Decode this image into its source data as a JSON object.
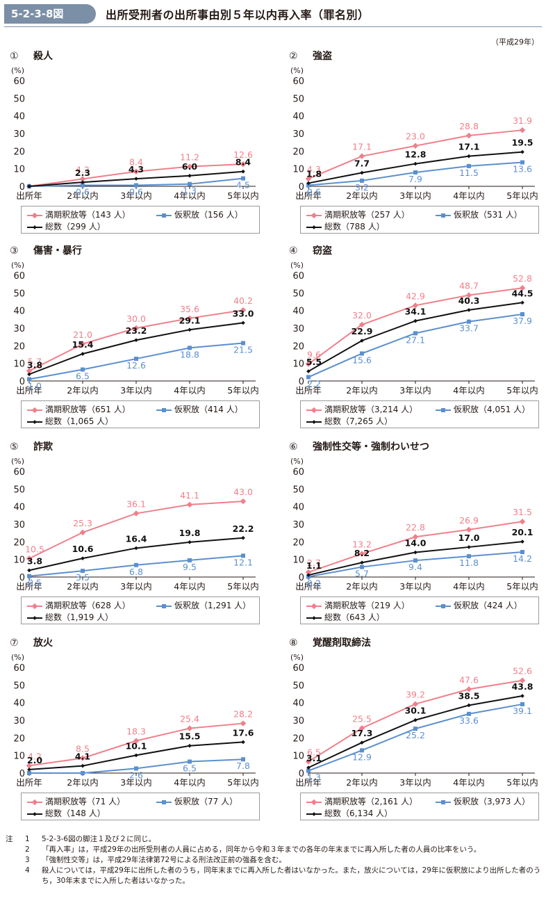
{
  "header": {
    "figure_id": "5-2-3-8図",
    "title": "出所受刑者の出所事由別５年以内再入率（罪名別）",
    "year_note": "（平成29年）"
  },
  "chart_data": [
    {
      "type": "line",
      "num": "①",
      "title": "殺人",
      "ylabel": "(%)",
      "ylim": [
        0,
        60
      ],
      "yticks": [
        "0",
        "10",
        "20",
        "30",
        "40",
        "50",
        "60"
      ],
      "categories": [
        "出所年",
        "2年以内",
        "3年以内",
        "4年以内",
        "5年以内"
      ],
      "series": [
        {
          "name": "満期釈放等",
          "count": "（143 人）",
          "values": [
            0,
            4.2,
            8.4,
            11.2,
            12.6
          ],
          "labels": [
            "",
            "4.2",
            "8.4",
            "11.2",
            "12.6"
          ]
        },
        {
          "name": "仮釈放",
          "count": "（156 人）",
          "values": [
            0,
            0.6,
            0.6,
            1.3,
            4.5
          ],
          "labels": [
            "",
            "0.6",
            "0.6",
            "1.3",
            "4.5"
          ]
        },
        {
          "name": "総数",
          "count": "（299 人）",
          "values": [
            0,
            2.3,
            4.3,
            6.0,
            8.4
          ],
          "labels": [
            "",
            "2.3",
            "4.3",
            "6.0",
            "8.4"
          ]
        }
      ]
    },
    {
      "type": "line",
      "num": "②",
      "title": "強盗",
      "ylabel": "(%)",
      "ylim": [
        0,
        60
      ],
      "yticks": [
        "0",
        "10",
        "20",
        "30",
        "40",
        "50",
        "60"
      ],
      "categories": [
        "出所年",
        "2年以内",
        "3年以内",
        "4年以内",
        "5年以内"
      ],
      "series": [
        {
          "name": "満期釈放等",
          "count": "（257 人）",
          "values": [
            4.3,
            17.1,
            23.0,
            28.8,
            31.9
          ],
          "labels": [
            "4.3",
            "17.1",
            "23.0",
            "28.8",
            "31.9"
          ]
        },
        {
          "name": "仮釈放",
          "count": "（531 人）",
          "values": [
            0.6,
            3.2,
            7.9,
            11.5,
            13.6
          ],
          "labels": [
            "0.6",
            "3.2",
            "7.9",
            "11.5",
            "13.6"
          ]
        },
        {
          "name": "総数",
          "count": "（788 人）",
          "values": [
            1.8,
            7.7,
            12.8,
            17.1,
            19.5
          ],
          "labels": [
            "1.8",
            "7.7",
            "12.8",
            "17.1",
            "19.5"
          ]
        }
      ]
    },
    {
      "type": "line",
      "num": "③",
      "title": "傷害・暴行",
      "ylabel": "(%)",
      "ylim": [
        0,
        60
      ],
      "yticks": [
        "0",
        "10",
        "20",
        "30",
        "40",
        "50",
        "60"
      ],
      "categories": [
        "出所年",
        "2年以内",
        "3年以内",
        "4年以内",
        "5年以内"
      ],
      "series": [
        {
          "name": "満期釈放等",
          "count": "（651 人）",
          "values": [
            5.7,
            21.0,
            30.0,
            35.6,
            40.2
          ],
          "labels": [
            "5.7",
            "21.0",
            "30.0",
            "35.6",
            "40.2"
          ]
        },
        {
          "name": "仮釈放",
          "count": "（414 人）",
          "values": [
            1.0,
            6.5,
            12.6,
            18.8,
            21.5
          ],
          "labels": [
            "1.0",
            "6.5",
            "12.6",
            "18.8",
            "21.5"
          ]
        },
        {
          "name": "総数",
          "count": "（1,065 人）",
          "values": [
            3.8,
            15.4,
            23.2,
            29.1,
            33.0
          ],
          "labels": [
            "3.8",
            "15.4",
            "23.2",
            "29.1",
            "33.0"
          ]
        }
      ]
    },
    {
      "type": "line",
      "num": "④",
      "title": "窃盗",
      "ylabel": "(%)",
      "ylim": [
        0,
        60
      ],
      "yticks": [
        "0",
        "10",
        "20",
        "30",
        "40",
        "50",
        "60"
      ],
      "categories": [
        "出所年",
        "2年以内",
        "3年以内",
        "4年以内",
        "5年以内"
      ],
      "series": [
        {
          "name": "満期釈放等",
          "count": "（3,214 人）",
          "values": [
            9.6,
            32.0,
            42.9,
            48.7,
            52.8
          ],
          "labels": [
            "9.6",
            "32.0",
            "42.9",
            "48.7",
            "52.8"
          ]
        },
        {
          "name": "仮釈放",
          "count": "（4,051 人）",
          "values": [
            2.2,
            15.6,
            27.1,
            33.7,
            37.9
          ],
          "labels": [
            "2.2",
            "15.6",
            "27.1",
            "33.7",
            "37.9"
          ]
        },
        {
          "name": "総数",
          "count": "（7,265 人）",
          "values": [
            5.5,
            22.9,
            34.1,
            40.3,
            44.5
          ],
          "labels": [
            "5.5",
            "22.9",
            "34.1",
            "40.3",
            "44.5"
          ]
        }
      ]
    },
    {
      "type": "line",
      "num": "⑤",
      "title": "詐欺",
      "ylabel": "(%)",
      "ylim": [
        0,
        60
      ],
      "yticks": [
        "0",
        "10",
        "20",
        "30",
        "40",
        "50",
        "60"
      ],
      "categories": [
        "出所年",
        "2年以内",
        "3年以内",
        "4年以内",
        "5年以内"
      ],
      "series": [
        {
          "name": "満期釈放等",
          "count": "（628 人）",
          "values": [
            10.5,
            25.3,
            36.1,
            41.1,
            43.0
          ],
          "labels": [
            "10.5",
            "25.3",
            "36.1",
            "41.1",
            "43.0"
          ]
        },
        {
          "name": "仮釈放",
          "count": "（1,291 人）",
          "values": [
            0.5,
            3.5,
            6.8,
            9.5,
            12.1
          ],
          "labels": [
            "0.5",
            "3.5",
            "6.8",
            "9.5",
            "12.1"
          ]
        },
        {
          "name": "総数",
          "count": "（1,919 人）",
          "values": [
            3.8,
            10.6,
            16.4,
            19.8,
            22.2
          ],
          "labels": [
            "3.8",
            "10.6",
            "16.4",
            "19.8",
            "22.2"
          ]
        }
      ]
    },
    {
      "type": "line",
      "num": "⑥",
      "title": "強制性交等・強制わいせつ",
      "ylabel": "(%)",
      "ylim": [
        0,
        60
      ],
      "yticks": [
        "0",
        "10",
        "20",
        "30",
        "40",
        "50",
        "60"
      ],
      "categories": [
        "出所年",
        "2年以内",
        "3年以内",
        "4年以内",
        "5年以内"
      ],
      "series": [
        {
          "name": "満期釈放等",
          "count": "（219 人）",
          "values": [
            2.7,
            13.2,
            22.8,
            26.9,
            31.5
          ],
          "labels": [
            "2.7",
            "13.2",
            "22.8",
            "26.9",
            "31.5"
          ]
        },
        {
          "name": "仮釈放",
          "count": "（424 人）",
          "values": [
            0.2,
            5.7,
            9.4,
            11.8,
            14.2
          ],
          "labels": [
            "0.2",
            "5.7",
            "9.4",
            "11.8",
            "14.2"
          ]
        },
        {
          "name": "総数",
          "count": "（643 人）",
          "values": [
            1.1,
            8.2,
            14.0,
            17.0,
            20.1
          ],
          "labels": [
            "1.1",
            "8.2",
            "14.0",
            "17.0",
            "20.1"
          ]
        }
      ]
    },
    {
      "type": "line",
      "num": "⑦",
      "title": "放火",
      "ylabel": "(%)",
      "ylim": [
        0,
        60
      ],
      "yticks": [
        "0",
        "10",
        "20",
        "30",
        "40",
        "50",
        "60"
      ],
      "categories": [
        "出所年",
        "2年以内",
        "3年以内",
        "4年以内",
        "5年以内"
      ],
      "series": [
        {
          "name": "満期釈放等",
          "count": "（71 人）",
          "values": [
            4.2,
            8.5,
            18.3,
            25.4,
            28.2
          ],
          "labels": [
            "4.2",
            "8.5",
            "18.3",
            "25.4",
            "28.2"
          ]
        },
        {
          "name": "仮釈放",
          "count": "（77 人）",
          "values": [
            0,
            0,
            2.6,
            6.5,
            7.8
          ],
          "labels": [
            "",
            "",
            "2.6",
            "6.5",
            "7.8"
          ]
        },
        {
          "name": "総数",
          "count": "（148 人）",
          "values": [
            2.0,
            4.1,
            10.1,
            15.5,
            17.6
          ],
          "labels": [
            "2.0",
            "4.1",
            "10.1",
            "15.5",
            "17.6"
          ]
        }
      ]
    },
    {
      "type": "line",
      "num": "⑧",
      "title": "覚醒剤取締法",
      "ylabel": "(%)",
      "ylim": [
        0,
        60
      ],
      "yticks": [
        "0",
        "10",
        "20",
        "30",
        "40",
        "50",
        "60"
      ],
      "categories": [
        "出所年",
        "2年以内",
        "3年以内",
        "4年以内",
        "5年以内"
      ],
      "series": [
        {
          "name": "満期釈放等",
          "count": "（2,161 人）",
          "values": [
            6.5,
            25.5,
            39.2,
            47.6,
            52.6
          ],
          "labels": [
            "6.5",
            "25.5",
            "39.2",
            "47.6",
            "52.6"
          ]
        },
        {
          "name": "仮釈放",
          "count": "（3,973 人）",
          "values": [
            1.3,
            12.9,
            25.2,
            33.6,
            39.1
          ],
          "labels": [
            "1.3",
            "12.9",
            "25.2",
            "33.6",
            "39.1"
          ]
        },
        {
          "name": "総数",
          "count": "（6,134 人）",
          "values": [
            3.1,
            17.3,
            30.1,
            38.5,
            43.8
          ],
          "labels": [
            "3.1",
            "17.3",
            "30.1",
            "38.5",
            "43.8"
          ]
        }
      ]
    }
  ],
  "colors": {
    "red": "#f07f8a",
    "blue": "#5b8fcf",
    "black": "#111111",
    "header": "#7b8fa6"
  },
  "notes": {
    "head": "注",
    "items": [
      {
        "num": "1",
        "text": "5-2-3-6図の脚注１及び２に同じ。"
      },
      {
        "num": "2",
        "text": "「再入率」は，平成29年の出所受刑者の人員に占める，同年から令和３年までの各年の年末までに再入所した者の人員の比率をいう。"
      },
      {
        "num": "3",
        "text": "「強制性交等」は，平成29年法律第72号による刑法改正前の強姦を含む。"
      },
      {
        "num": "4",
        "text": "殺人については，平成29年に出所した者のうち，同年末までに再入所した者はいなかった。また，放火については，29年に仮釈放により出所した者のうち，30年末までに入所した者はいなかった。"
      }
    ]
  }
}
